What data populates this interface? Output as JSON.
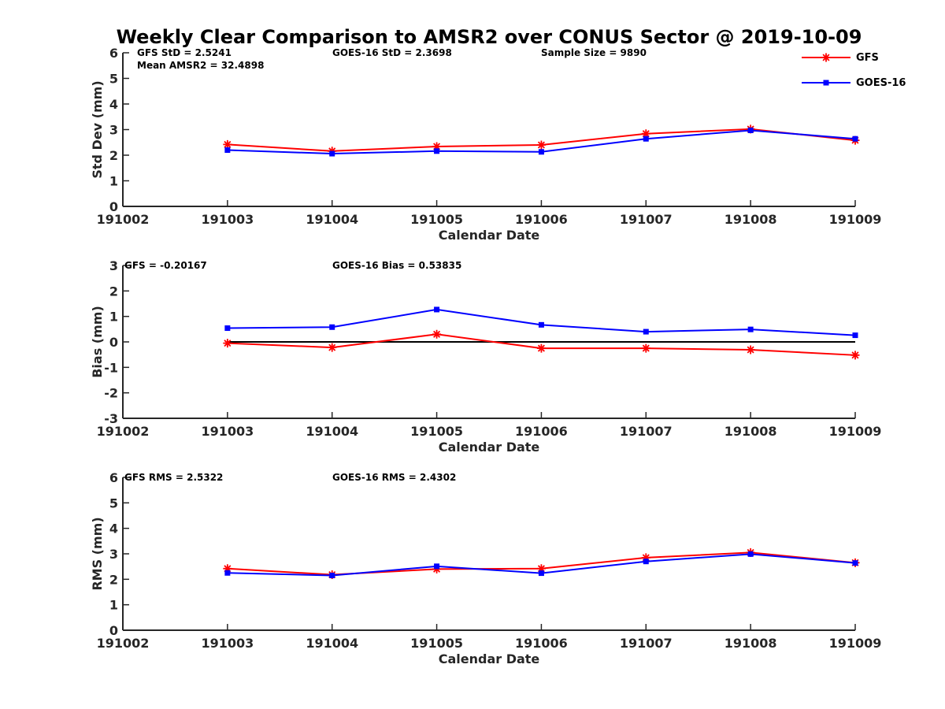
{
  "chart_data": {
    "type": "line",
    "title": "Weekly Clear Comparison to AMSR2 over CONUS Sector @ 2019-10-09",
    "x": [
      "191002",
      "191003",
      "191004",
      "191005",
      "191006",
      "191007",
      "191008",
      "191009"
    ],
    "legend": {
      "placement": "top-right",
      "entries": [
        {
          "name": "GFS",
          "color": "#ff0000",
          "marker": "asterisk"
        },
        {
          "name": "GOES-16",
          "color": "#0000ff",
          "marker": "square"
        }
      ]
    },
    "panels": [
      {
        "id": "std",
        "ylabel": "Std Dev (mm)",
        "xlabel": "Calendar Date",
        "ylim": [
          0,
          6
        ],
        "yticks": [
          0,
          1,
          2,
          3,
          4,
          5,
          6
        ],
        "stats": [
          {
            "text": "GFS StD = 2.5241"
          },
          {
            "text": "Mean AMSR2 = 32.4898"
          },
          {
            "text": "GOES-16 StD = 2.3698"
          },
          {
            "text": "Sample Size = 9890"
          }
        ],
        "zero_line": false,
        "series": [
          {
            "name": "GFS",
            "color": "#ff0000",
            "marker": "asterisk",
            "values": [
              null,
              2.42,
              2.16,
              2.34,
              2.4,
              2.84,
              3.02,
              2.58
            ]
          },
          {
            "name": "GOES-16",
            "color": "#0000ff",
            "marker": "square",
            "values": [
              null,
              2.2,
              2.06,
              2.16,
              2.13,
              2.64,
              2.97,
              2.64
            ]
          }
        ]
      },
      {
        "id": "bias",
        "ylabel": "Bias (mm)",
        "xlabel": "Calendar Date",
        "ylim": [
          -3,
          3
        ],
        "yticks": [
          -3,
          -2,
          -1,
          0,
          1,
          2,
          3
        ],
        "stats": [
          {
            "text": "GFS = -0.20167"
          },
          {
            "text": "GOES-16 Bias  = 0.53835"
          }
        ],
        "zero_line": true,
        "series": [
          {
            "name": "GFS",
            "color": "#ff0000",
            "marker": "asterisk",
            "values": [
              null,
              -0.05,
              -0.22,
              0.3,
              -0.25,
              -0.25,
              -0.31,
              -0.52
            ]
          },
          {
            "name": "GOES-16",
            "color": "#0000ff",
            "marker": "square",
            "values": [
              null,
              0.54,
              0.58,
              1.27,
              0.67,
              0.4,
              0.49,
              0.26
            ]
          }
        ]
      },
      {
        "id": "rms",
        "ylabel": "RMS (mm)",
        "xlabel": "Calendar Date",
        "ylim": [
          0,
          6
        ],
        "yticks": [
          0,
          1,
          2,
          3,
          4,
          5,
          6
        ],
        "stats": [
          {
            "text": "GFS RMS = 2.5322"
          },
          {
            "text": "GOES-16 RMS = 2.4302"
          }
        ],
        "zero_line": false,
        "series": [
          {
            "name": "GFS",
            "color": "#ff0000",
            "marker": "asterisk",
            "values": [
              null,
              2.42,
              2.18,
              2.4,
              2.42,
              2.85,
              3.05,
              2.65
            ]
          },
          {
            "name": "GOES-16",
            "color": "#0000ff",
            "marker": "square",
            "values": [
              null,
              2.25,
              2.15,
              2.51,
              2.24,
              2.7,
              2.99,
              2.64
            ]
          }
        ]
      }
    ]
  }
}
